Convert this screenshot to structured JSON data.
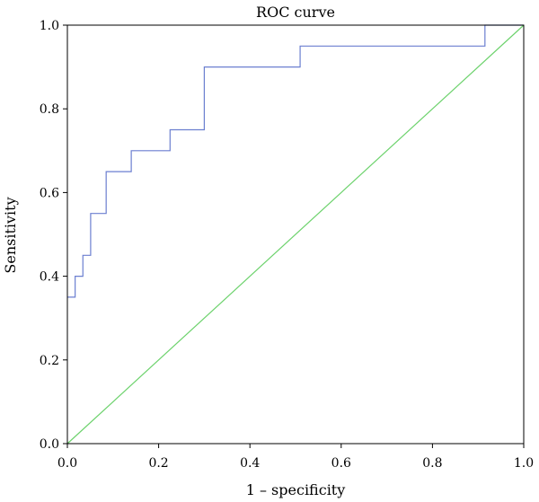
{
  "chart_data": {
    "type": "line",
    "title": "ROC curve",
    "xlabel": "1 – specificity",
    "ylabel": "Sensitivity",
    "xlim": [
      0,
      1
    ],
    "ylim": [
      0,
      1
    ],
    "xticks": [
      "0.0",
      "0.2",
      "0.4",
      "0.6",
      "0.8",
      "1.0"
    ],
    "yticks": [
      "0.0",
      "0.2",
      "0.4",
      "0.6",
      "0.8",
      "1.0"
    ],
    "grid": false,
    "legend": "none",
    "series": [
      {
        "color": "#6b7fd0",
        "style": "step",
        "x": [
          0.0,
          0.017,
          0.017,
          0.034,
          0.034,
          0.051,
          0.051,
          0.085,
          0.085,
          0.14,
          0.14,
          0.225,
          0.225,
          0.3,
          0.3,
          0.51,
          0.51,
          0.915,
          0.915,
          1.0
        ],
        "y": [
          0.35,
          0.35,
          0.4,
          0.4,
          0.45,
          0.45,
          0.55,
          0.55,
          0.65,
          0.65,
          0.7,
          0.7,
          0.75,
          0.75,
          0.9,
          0.9,
          0.95,
          0.95,
          1.0,
          1.0
        ]
      },
      {
        "color": "#6cd26c",
        "style": "line",
        "x": [
          0,
          1
        ],
        "y": [
          0,
          1
        ]
      }
    ]
  }
}
